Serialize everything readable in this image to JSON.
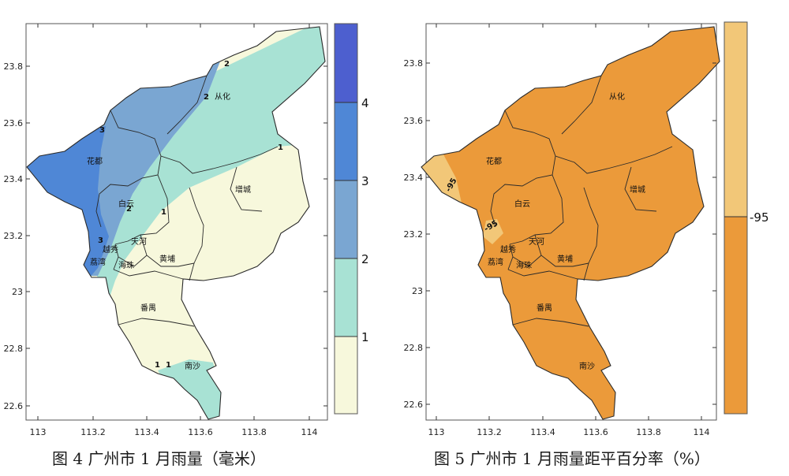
{
  "chart_data": [
    {
      "type": "map",
      "title": "图 4   广州市 1 月雨量（毫米）",
      "x_ticks": [
        "113",
        "113.2",
        "113.4",
        "113.6",
        "113.8",
        "114"
      ],
      "y_ticks": [
        "23.8",
        "23.6",
        "23.4",
        "23.2",
        "23",
        "22.8",
        "22.6"
      ],
      "xlim": [
        112.97,
        114.05
      ],
      "ylim": [
        22.56,
        23.94
      ],
      "legend": {
        "levels": [
          "1",
          "2",
          "3",
          "4"
        ],
        "colors": [
          "#f7f8dc",
          "#a8e2d4",
          "#7aa6d2",
          "#4f87d6",
          "#4d5fcf"
        ]
      },
      "contour_labels": [
        "1",
        "1",
        "1",
        "1",
        "2",
        "2",
        "2",
        "3",
        "3"
      ],
      "districts": [
        "从化",
        "花都",
        "增城",
        "白云",
        "天河",
        "越秀",
        "荔湾",
        "海珠",
        "黄埔",
        "番禺",
        "南沙"
      ]
    },
    {
      "type": "map",
      "title": "图 5   广州市 1 月雨量距平百分率（%）",
      "x_ticks": [
        "113",
        "113.2",
        "113.4",
        "113.6",
        "113.8",
        "114"
      ],
      "y_ticks": [
        "23.8",
        "23.6",
        "23.4",
        "23.2",
        "23",
        "22.8",
        "22.6"
      ],
      "xlim": [
        112.97,
        114.05
      ],
      "ylim": [
        22.56,
        23.94
      ],
      "legend": {
        "levels": [
          "-95"
        ],
        "colors": [
          "#eb9a3a",
          "#f2c778"
        ]
      },
      "contour_labels": [
        "-95",
        "-95"
      ],
      "districts": [
        "从化",
        "花都",
        "增城",
        "白云",
        "天河",
        "越秀",
        "荔湾",
        "海珠",
        "黄埔",
        "番禺",
        "南沙"
      ]
    }
  ],
  "colors": {
    "frame": "#555555",
    "boundary": "#2a2a2a",
    "grid_tick": "#333333"
  }
}
